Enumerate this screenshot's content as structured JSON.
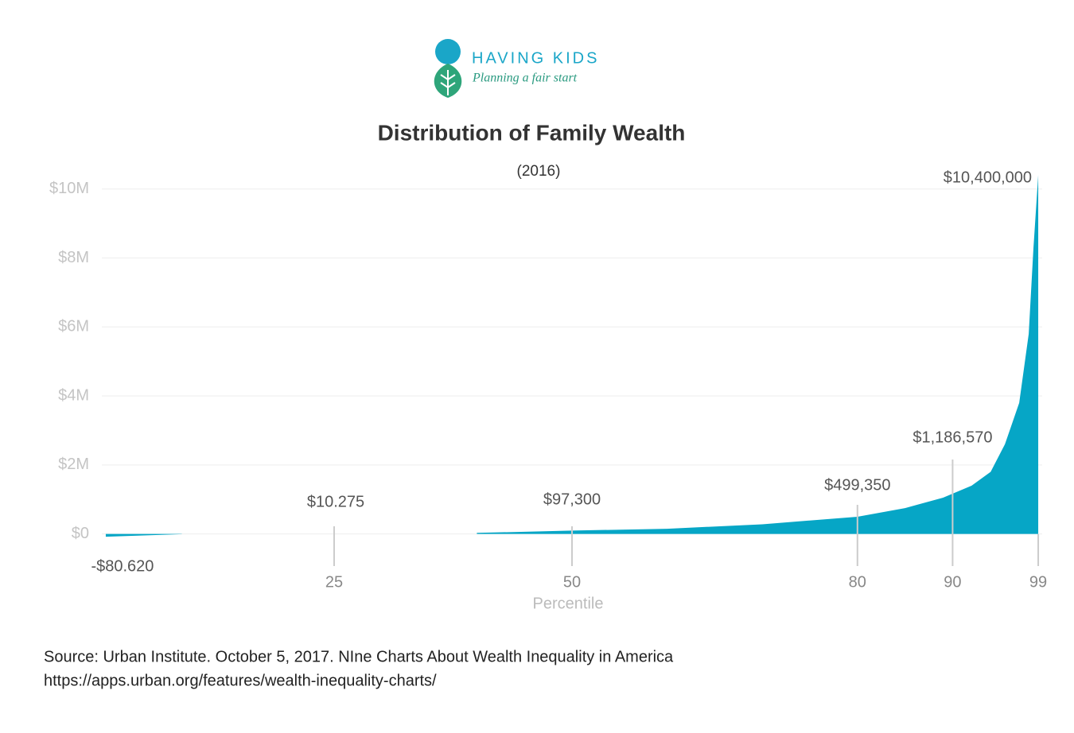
{
  "brand": {
    "name": "HAVING KIDS",
    "tagline": "Planning a fair start"
  },
  "chart_data": {
    "type": "area",
    "title": "Distribution of Family Wealth",
    "subtitle": "(2016)",
    "x_label": "Percentile",
    "x": [
      1,
      9,
      20,
      40,
      50,
      60,
      70,
      80,
      85,
      89,
      92,
      94,
      95.5,
      97,
      98,
      98.5,
      99
    ],
    "series": [
      {
        "name": "Family wealth",
        "color": "#06a6c6",
        "values": [
          -80620,
          -5000,
          null,
          30000,
          97300,
          150000,
          280000,
          499350,
          750000,
          1050000,
          1400000,
          1800000,
          2600000,
          3800000,
          5800000,
          8300000,
          10400000
        ]
      }
    ],
    "annotations": [
      {
        "x": 1,
        "value": -80620,
        "label": "-$80.620"
      },
      {
        "x": 25,
        "value": 10275,
        "label": "$10.275"
      },
      {
        "x": 50,
        "value": 97300,
        "label": "$97,300"
      },
      {
        "x": 80,
        "value": 499350,
        "label": "$499,350"
      },
      {
        "x": 90,
        "value": 1186570,
        "label": "$1,186,570"
      },
      {
        "x": 99,
        "value": 10400000,
        "label": "$10,400,000"
      }
    ],
    "xlim": [
      0,
      100
    ],
    "xticks": [
      25,
      50,
      80,
      90,
      99
    ],
    "ylim": [
      -1000000,
      10500000
    ],
    "yticks": [
      {
        "value": 0,
        "label": "$0"
      },
      {
        "value": 2000000,
        "label": "$2M"
      },
      {
        "value": 4000000,
        "label": "$4M"
      },
      {
        "value": 6000000,
        "label": "$6M"
      },
      {
        "value": 8000000,
        "label": "$8M"
      },
      {
        "value": 10000000,
        "label": "$10M"
      }
    ],
    "grid": true,
    "source": [
      "Source: Urban Institute. October 5, 2017. NIne Charts About Wealth Inequality in America",
      "https://apps.urban.org/features/wealth-inequality-charts/"
    ]
  }
}
